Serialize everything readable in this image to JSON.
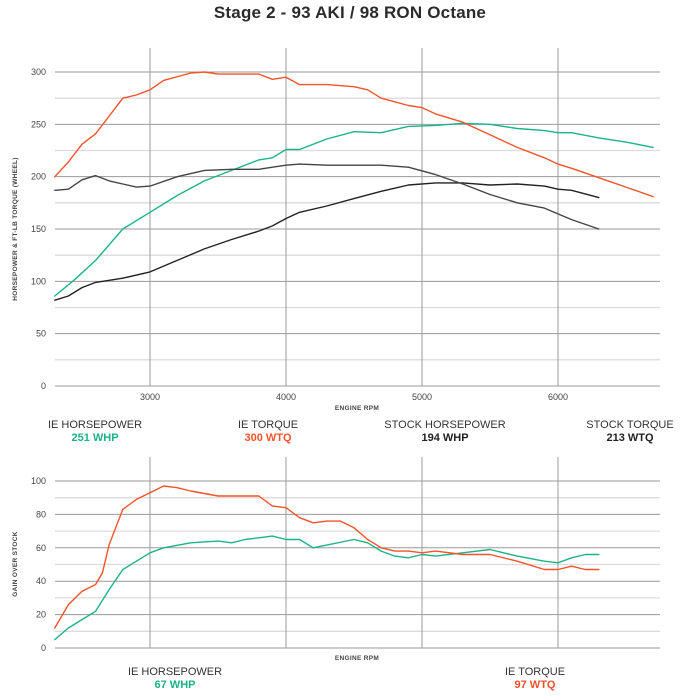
{
  "title": "Stage 2 - 93 AKI / 98 RON Octane",
  "colors": {
    "ie_horsepower": "#1bb38a",
    "ie_torque": "#f4532a",
    "stock_horsepower": "#222222",
    "stock_torque": "#444444",
    "grid_major": "#9a9a9a",
    "grid_minor": "#dcdcdc"
  },
  "top_chart": {
    "ylabel": "HORSEPOWER & FT-LB TORQUE (WHEEL)",
    "xlabel": "ENGINE RPM",
    "y_ticks": [
      "0",
      "50",
      "100",
      "150",
      "200",
      "250",
      "300"
    ],
    "x_ticks": [
      "3000",
      "4000",
      "5000",
      "6000"
    ],
    "legend": [
      {
        "label": "IE HORSEPOWER",
        "value": "251 WHP",
        "color": "#1bb38a"
      },
      {
        "label": "IE TORQUE",
        "value": "300 WTQ",
        "color": "#f4532a"
      },
      {
        "label": "STOCK HORSEPOWER",
        "value": "194 WHP",
        "color": "#222222"
      },
      {
        "label": "STOCK TORQUE",
        "value": "213 WTQ",
        "color": "#222222"
      }
    ]
  },
  "bottom_chart": {
    "ylabel": "GAIN OVER STOCK",
    "xlabel": "ENGINE RPM",
    "y_ticks": [
      "0",
      "20",
      "40",
      "60",
      "80",
      "100"
    ],
    "legend": [
      {
        "label": "IE HORSEPOWER",
        "value": "67 WHP",
        "color": "#1bb38a"
      },
      {
        "label": "IE TORQUE",
        "value": "97 WTQ",
        "color": "#f4532a"
      }
    ]
  },
  "chart_data": [
    {
      "type": "line",
      "title": "Stage 2 - 93 AKI / 98 RON Octane",
      "xlabel": "ENGINE RPM",
      "ylabel": "HORSEPOWER & FT-LB TORQUE (WHEEL)",
      "xlim": [
        2300,
        6750
      ],
      "ylim": [
        0,
        300
      ],
      "x_ticks": [
        3000,
        4000,
        5000,
        6000
      ],
      "y_ticks": [
        0,
        50,
        100,
        150,
        200,
        250,
        300
      ],
      "grid": true,
      "legend_position": "bottom",
      "series": [
        {
          "name": "IE HORSEPOWER",
          "peak": "251 WHP",
          "color": "#1bb38a",
          "x": [
            2300,
            2450,
            2600,
            2800,
            3000,
            3200,
            3400,
            3600,
            3800,
            3900,
            4000,
            4100,
            4300,
            4500,
            4700,
            4900,
            5100,
            5300,
            5500,
            5700,
            5900,
            6000,
            6100,
            6300,
            6500,
            6700
          ],
          "y": [
            86,
            102,
            120,
            150,
            166,
            182,
            196,
            206,
            216,
            218,
            226,
            226,
            236,
            243,
            242,
            248,
            249,
            251,
            250,
            246,
            244,
            242,
            242,
            237,
            233,
            228
          ]
        },
        {
          "name": "IE TORQUE",
          "peak": "300 WTQ",
          "color": "#f4532a",
          "x": [
            2300,
            2400,
            2500,
            2600,
            2700,
            2800,
            2900,
            3000,
            3100,
            3300,
            3400,
            3500,
            3700,
            3800,
            3900,
            4000,
            4100,
            4300,
            4500,
            4600,
            4700,
            4900,
            5000,
            5100,
            5300,
            5500,
            5700,
            5900,
            6000,
            6100,
            6300,
            6500,
            6700
          ],
          "y": [
            200,
            214,
            231,
            241,
            258,
            275,
            278,
            283,
            292,
            299,
            300,
            298,
            298,
            298,
            293,
            295,
            288,
            288,
            286,
            283,
            275,
            268,
            266,
            260,
            252,
            240,
            228,
            218,
            212,
            208,
            199,
            190,
            181
          ]
        },
        {
          "name": "STOCK HORSEPOWER",
          "peak": "194 WHP",
          "color": "#222222",
          "x": [
            2300,
            2400,
            2500,
            2600,
            2800,
            3000,
            3200,
            3400,
            3600,
            3800,
            3900,
            4000,
            4100,
            4300,
            4500,
            4700,
            4800,
            4900,
            5100,
            5300,
            5500,
            5700,
            5900,
            6000,
            6100,
            6300
          ],
          "y": [
            82,
            86,
            94,
            99,
            103,
            109,
            120,
            131,
            140,
            148,
            153,
            160,
            166,
            172,
            179,
            186,
            189,
            192,
            194,
            194,
            192,
            193,
            191,
            188,
            187,
            180
          ]
        },
        {
          "name": "STOCK TORQUE",
          "peak": "213 WTQ",
          "color": "#444444",
          "x": [
            2300,
            2400,
            2500,
            2600,
            2700,
            2800,
            2900,
            3000,
            3200,
            3400,
            3600,
            3800,
            3900,
            4000,
            4100,
            4300,
            4500,
            4700,
            4900,
            5100,
            5300,
            5500,
            5700,
            5900,
            6100,
            6300
          ],
          "y": [
            187,
            188,
            197,
            201,
            196,
            193,
            190,
            191,
            200,
            206,
            207,
            207,
            209,
            211,
            212,
            211,
            211,
            211,
            209,
            202,
            193,
            183,
            175,
            170,
            159,
            150
          ]
        }
      ]
    },
    {
      "type": "line",
      "title": "",
      "xlabel": "ENGINE RPM",
      "ylabel": "GAIN OVER STOCK",
      "xlim": [
        2300,
        6750
      ],
      "ylim": [
        0,
        100
      ],
      "x_ticks": [
        3000,
        4000,
        5000,
        6000
      ],
      "y_ticks": [
        0,
        20,
        40,
        60,
        80,
        100
      ],
      "grid": true,
      "legend_position": "bottom",
      "series": [
        {
          "name": "IE HORSEPOWER",
          "peak": "67 WHP",
          "color": "#1bb38a",
          "x": [
            2300,
            2400,
            2500,
            2600,
            2700,
            2800,
            2900,
            3000,
            3100,
            3300,
            3500,
            3600,
            3700,
            3800,
            3900,
            4000,
            4100,
            4200,
            4500,
            4600,
            4700,
            4800,
            4900,
            5000,
            5100,
            5300,
            5500,
            5700,
            5900,
            6000,
            6100,
            6200,
            6300
          ],
          "y": [
            5,
            12,
            17,
            22,
            35,
            47,
            52,
            57,
            60,
            63,
            64,
            63,
            65,
            66,
            67,
            65,
            65,
            60,
            65,
            63,
            58,
            55,
            54,
            56,
            55,
            57,
            59,
            55,
            52,
            51,
            54,
            56,
            56
          ]
        },
        {
          "name": "IE TORQUE",
          "peak": "97 WTQ",
          "color": "#f4532a",
          "x": [
            2300,
            2400,
            2500,
            2600,
            2650,
            2700,
            2800,
            2900,
            3000,
            3100,
            3200,
            3300,
            3500,
            3600,
            3700,
            3800,
            3900,
            4000,
            4100,
            4200,
            4300,
            4400,
            4500,
            4600,
            4700,
            4800,
            4900,
            5000,
            5100,
            5300,
            5500,
            5700,
            5900,
            6000,
            6100,
            6200,
            6300
          ],
          "y": [
            12,
            26,
            34,
            38,
            45,
            62,
            83,
            89,
            93,
            97,
            96,
            94,
            91,
            91,
            91,
            91,
            85,
            84,
            78,
            75,
            76,
            76,
            72,
            65,
            60,
            58,
            58,
            57,
            58,
            56,
            56,
            52,
            47,
            47,
            49,
            47,
            47
          ]
        }
      ]
    }
  ]
}
